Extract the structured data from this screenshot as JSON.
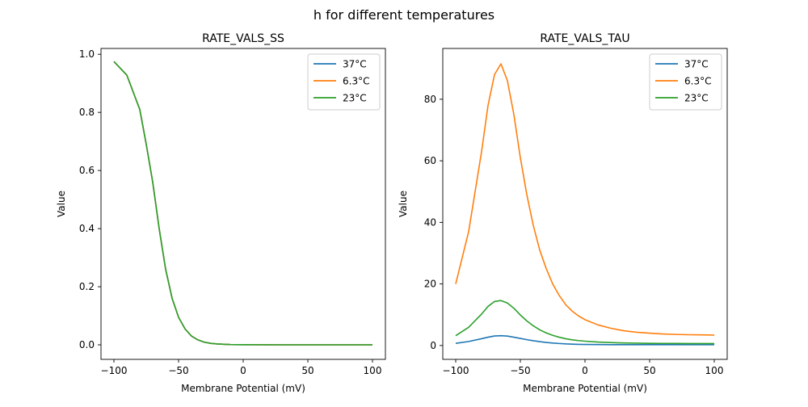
{
  "figure": {
    "suptitle": "h for different temperatures"
  },
  "chart_data": [
    {
      "type": "line",
      "title": "RATE_VALS_SS",
      "xlabel": "Membrane Potential (mV)",
      "ylabel": "Value",
      "xlim": [
        -110,
        110
      ],
      "ylim": [
        -0.05,
        1.02
      ],
      "xticks": [
        -100,
        -50,
        0,
        50,
        100
      ],
      "yticks": [
        0.0,
        0.2,
        0.4,
        0.6,
        0.8,
        1.0
      ],
      "ytick_labels": [
        "0.0",
        "0.2",
        "0.4",
        "0.6",
        "0.8",
        "1.0"
      ],
      "grid": false,
      "legend": "top-right",
      "x": [
        -100,
        -90,
        -80,
        -75,
        -70,
        -65,
        -60,
        -55,
        -50,
        -45,
        -40,
        -35,
        -30,
        -25,
        -20,
        -10,
        0,
        25,
        50,
        75,
        100
      ],
      "series": [
        {
          "name": "37°C",
          "color": "#1f77b4",
          "values": [
            0.975,
            0.928,
            0.81,
            0.69,
            0.56,
            0.4,
            0.26,
            0.16,
            0.095,
            0.055,
            0.03,
            0.017,
            0.009,
            0.005,
            0.003,
            0.001,
            0.0005,
            0.0,
            0.0,
            0.0,
            0.0
          ]
        },
        {
          "name": "6.3°C",
          "color": "#ff7f0e",
          "values": [
            0.975,
            0.928,
            0.81,
            0.69,
            0.56,
            0.4,
            0.26,
            0.16,
            0.095,
            0.055,
            0.03,
            0.017,
            0.009,
            0.005,
            0.003,
            0.001,
            0.0005,
            0.0,
            0.0,
            0.0,
            0.0
          ]
        },
        {
          "name": "23°C",
          "color": "#2ca02c",
          "values": [
            0.975,
            0.928,
            0.81,
            0.69,
            0.56,
            0.4,
            0.26,
            0.16,
            0.095,
            0.055,
            0.03,
            0.017,
            0.009,
            0.005,
            0.003,
            0.001,
            0.0005,
            0.0,
            0.0,
            0.0,
            0.0
          ]
        }
      ]
    },
    {
      "type": "line",
      "title": "RATE_VALS_TAU",
      "xlabel": "Membrane Potential (mV)",
      "ylabel": "Value",
      "xlim": [
        -110,
        110
      ],
      "ylim": [
        -4.5,
        96.5
      ],
      "xticks": [
        -100,
        -50,
        0,
        50,
        100
      ],
      "yticks": [
        0,
        20,
        40,
        60,
        80
      ],
      "ytick_labels": [
        "0",
        "20",
        "40",
        "60",
        "80"
      ],
      "grid": false,
      "legend": "top-right",
      "x": [
        -100,
        -90,
        -80,
        -75,
        -70,
        -65,
        -60,
        -55,
        -50,
        -45,
        -40,
        -35,
        -30,
        -25,
        -20,
        -15,
        -10,
        -5,
        0,
        10,
        20,
        30,
        40,
        50,
        60,
        70,
        80,
        90,
        100
      ],
      "series": [
        {
          "name": "37°C",
          "color": "#1f77b4",
          "values": [
            0.7,
            1.3,
            2.2,
            2.7,
            3.1,
            3.2,
            3.05,
            2.7,
            2.3,
            1.9,
            1.55,
            1.25,
            1.0,
            0.8,
            0.65,
            0.52,
            0.44,
            0.38,
            0.34,
            0.3,
            0.28,
            0.27,
            0.27,
            0.26,
            0.26,
            0.26,
            0.26,
            0.26,
            0.26
          ]
        },
        {
          "name": "6.3°C",
          "color": "#ff7f0e",
          "values": [
            20.0,
            37.0,
            63.0,
            78.0,
            88.0,
            91.5,
            86.0,
            75.0,
            61.0,
            49.0,
            39.0,
            31.0,
            25.0,
            20.0,
            16.3,
            13.3,
            11.2,
            9.6,
            8.4,
            6.7,
            5.6,
            4.8,
            4.3,
            4.0,
            3.75,
            3.6,
            3.5,
            3.45,
            3.4
          ]
        },
        {
          "name": "23°C",
          "color": "#2ca02c",
          "values": [
            3.2,
            5.9,
            10.2,
            12.7,
            14.3,
            14.6,
            13.8,
            12.1,
            9.9,
            8.0,
            6.4,
            5.1,
            4.1,
            3.3,
            2.7,
            2.2,
            1.85,
            1.6,
            1.4,
            1.12,
            0.95,
            0.83,
            0.76,
            0.71,
            0.68,
            0.66,
            0.64,
            0.63,
            0.62
          ]
        }
      ]
    }
  ]
}
